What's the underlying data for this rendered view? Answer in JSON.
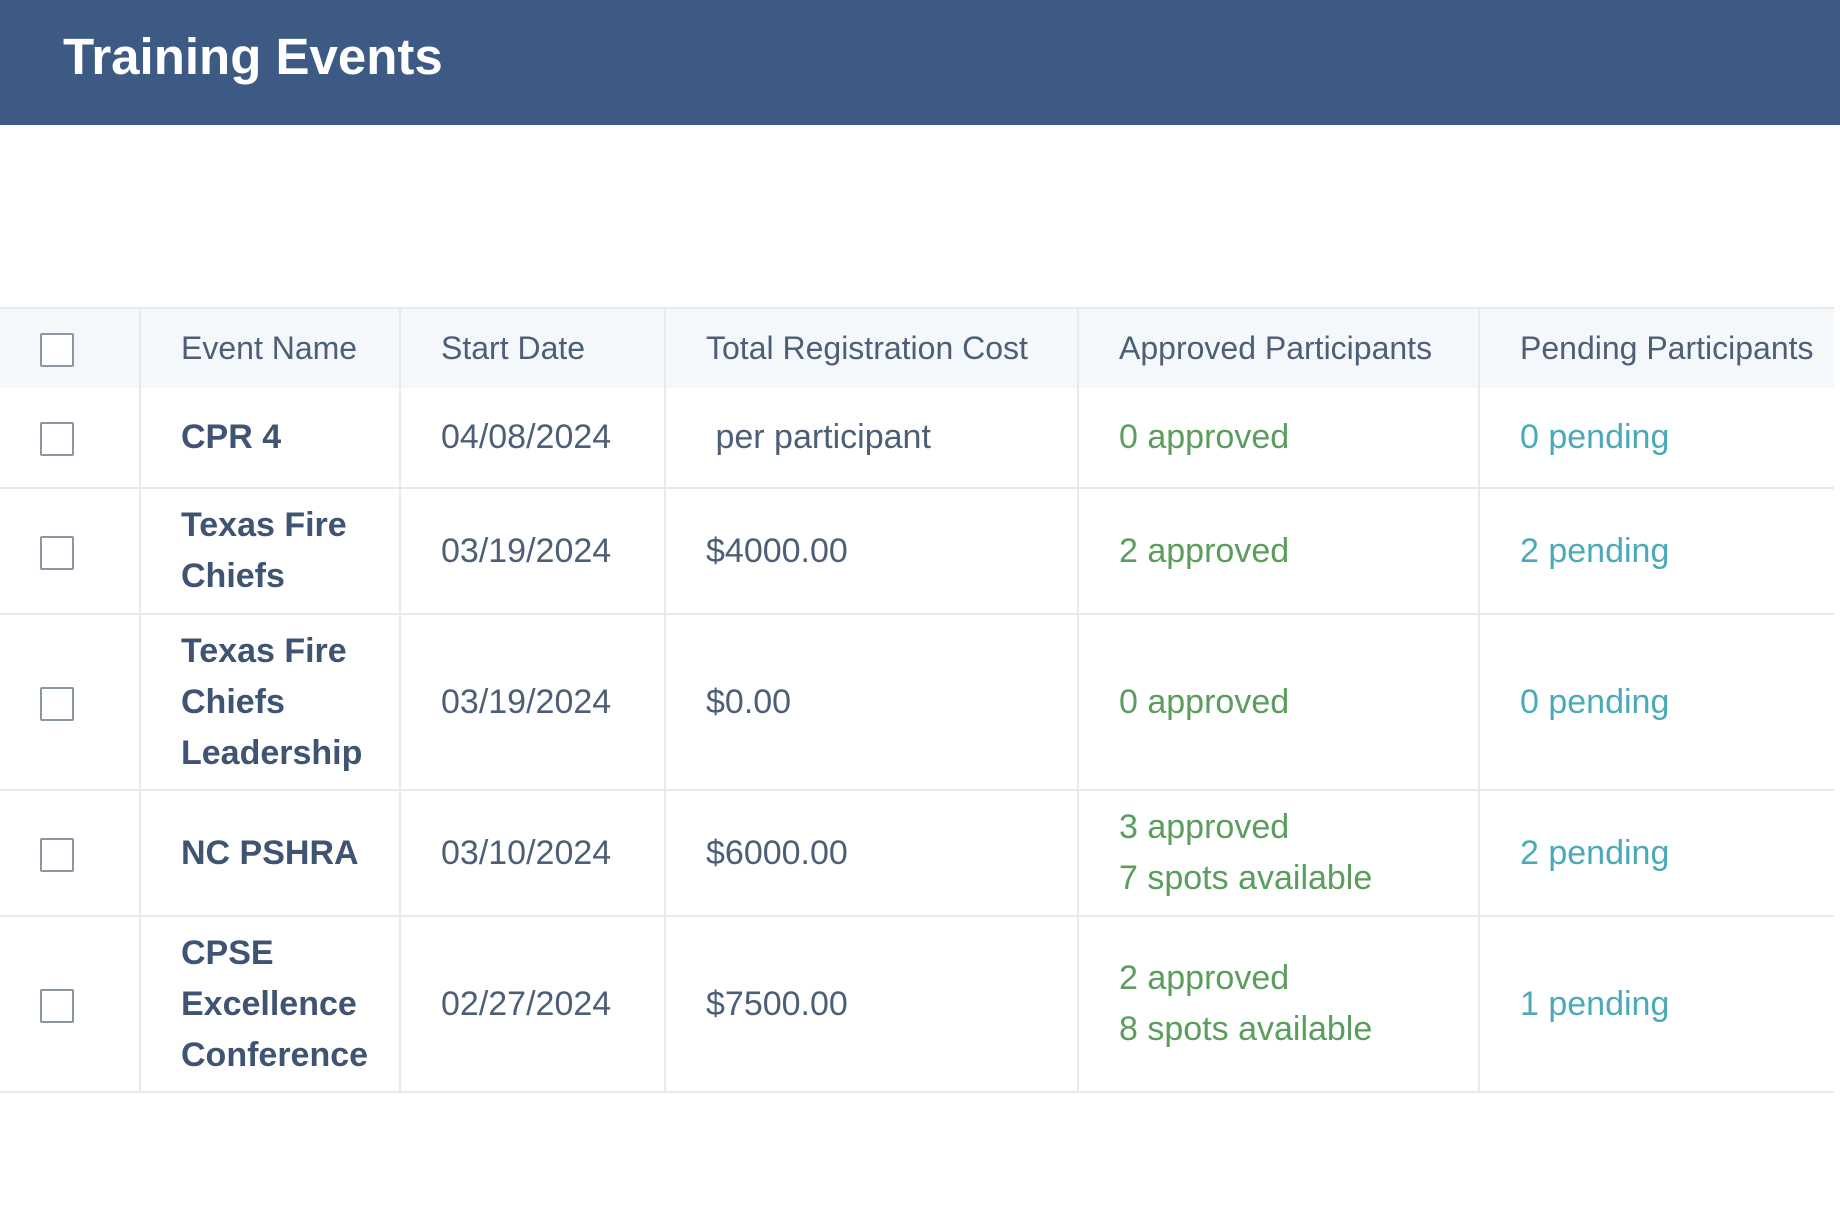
{
  "header": {
    "title": "Training Events"
  },
  "table": {
    "columns": [
      "Event Name",
      "Start Date",
      "Total Registration Cost",
      "Approved Participants",
      "Pending Participants"
    ],
    "rows": [
      {
        "name": "CPR 4",
        "start_date": "04/08/2024",
        "cost": " per participant",
        "approved": "0 approved",
        "spots": "",
        "pending": "0 pending"
      },
      {
        "name": "Texas Fire Chiefs",
        "start_date": "03/19/2024",
        "cost": "$4000.00",
        "approved": "2 approved",
        "spots": "",
        "pending": "2 pending"
      },
      {
        "name": "Texas Fire Chiefs Leadership",
        "start_date": "03/19/2024",
        "cost": "$0.00",
        "approved": "0 approved",
        "spots": "",
        "pending": "0 pending"
      },
      {
        "name": "NC PSHRA",
        "start_date": "03/10/2024",
        "cost": "$6000.00",
        "approved": "3 approved",
        "spots": "7 spots available",
        "pending": "2 pending"
      },
      {
        "name": "CPSE Excellence Conference",
        "start_date": "02/27/2024",
        "cost": "$7500.00",
        "approved": "2 approved",
        "spots": "8 spots available",
        "pending": "1 pending"
      }
    ]
  }
}
